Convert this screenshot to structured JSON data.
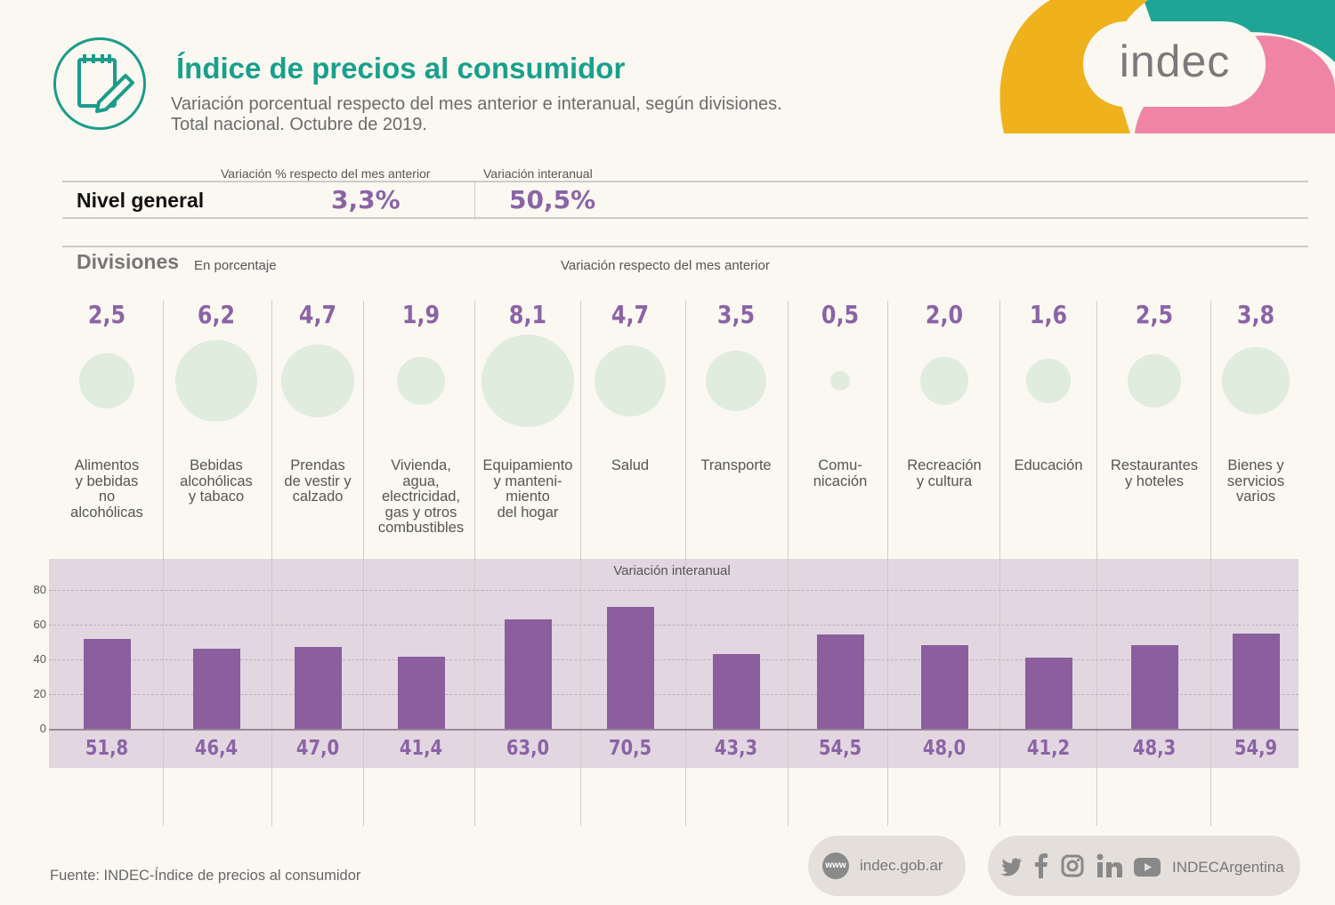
{
  "header": {
    "title": "Índice de precios al consumidor",
    "subtitle_line1": "Variación porcentual respecto del mes anterior e interanual, según divisiones.",
    "subtitle_line2": "Total nacional. Octubre de 2019.",
    "brand": "indec"
  },
  "nivel_general": {
    "label": "Nivel general",
    "monthly_header": "Variación % respecto del mes anterior",
    "annual_header": "Variación interanual",
    "monthly_value": "3,3%",
    "annual_value": "50,5%"
  },
  "divisions": {
    "title": "Divisiones",
    "unit": "En porcentaje",
    "monthly_caption": "Variación respecto del mes anterior",
    "annual_caption": "Variación interanual"
  },
  "chart_data": {
    "type": "bar",
    "title": "Variación interanual",
    "categories": [
      "Alimentos y bebidas no alcohólicas",
      "Bebidas alcohólicas y tabaco",
      "Prendas de vestir y calzado",
      "Vivienda, agua, electricidad, gas y otros combustibles",
      "Equipamiento y mantenimiento del hogar",
      "Salud",
      "Transporte",
      "Comunicación",
      "Recreación y cultura",
      "Educación",
      "Restaurantes y hoteles",
      "Bienes y servicios varios"
    ],
    "category_label_lines": [
      [
        "Alimentos",
        "y bebidas",
        "no",
        "alcohólicas"
      ],
      [
        "Bebidas",
        "alcohólicas",
        "y tabaco"
      ],
      [
        "Prendas",
        "de vestir y",
        "calzado"
      ],
      [
        "Vivienda,",
        "agua,",
        "electricidad,",
        "gas y otros",
        "combustibles"
      ],
      [
        "Equipamiento",
        "y manteni-",
        "miento",
        "del hogar"
      ],
      [
        "Salud"
      ],
      [
        "Transporte"
      ],
      [
        "Comu-",
        "nicación"
      ],
      [
        "Recreación",
        "y cultura"
      ],
      [
        "Educación"
      ],
      [
        "Restaurantes",
        "y hoteles"
      ],
      [
        "Bienes y",
        "servicios",
        "varios"
      ]
    ],
    "monthly_values": [
      2.5,
      6.2,
      4.7,
      1.9,
      8.1,
      4.7,
      3.5,
      0.5,
      2.0,
      1.6,
      2.5,
      3.8
    ],
    "monthly_labels": [
      "2,5",
      "6,2",
      "4,7",
      "1,9",
      "8,1",
      "4,7",
      "3,5",
      "0,5",
      "2,0",
      "1,6",
      "2,5",
      "3,8"
    ],
    "values": [
      51.8,
      46.4,
      47.0,
      41.4,
      63.0,
      70.5,
      43.3,
      54.5,
      48.0,
      41.2,
      48.3,
      54.9
    ],
    "value_labels": [
      "51,8",
      "46,4",
      "47,0",
      "41,4",
      "63,0",
      "70,5",
      "43,3",
      "54,5",
      "48,0",
      "41,2",
      "48,3",
      "54,9"
    ],
    "yticks": [
      "0",
      "20",
      "40",
      "60",
      "80"
    ],
    "ylim": [
      0,
      80
    ],
    "grid": true,
    "bar_color": "#8b5e9e",
    "panel_color": "#e2d7e0",
    "accent_color": "#8b63a6",
    "title_color": "#18a08c"
  },
  "footer": {
    "source": "Fuente: INDEC-Índice de precios al consumidor",
    "www_badge": "www",
    "website": "indec.gob.ar",
    "social_handle": "INDECArgentina",
    "social_icons": [
      "twitter-icon",
      "facebook-icon",
      "instagram-icon",
      "linkedin-icon",
      "youtube-icon"
    ]
  }
}
